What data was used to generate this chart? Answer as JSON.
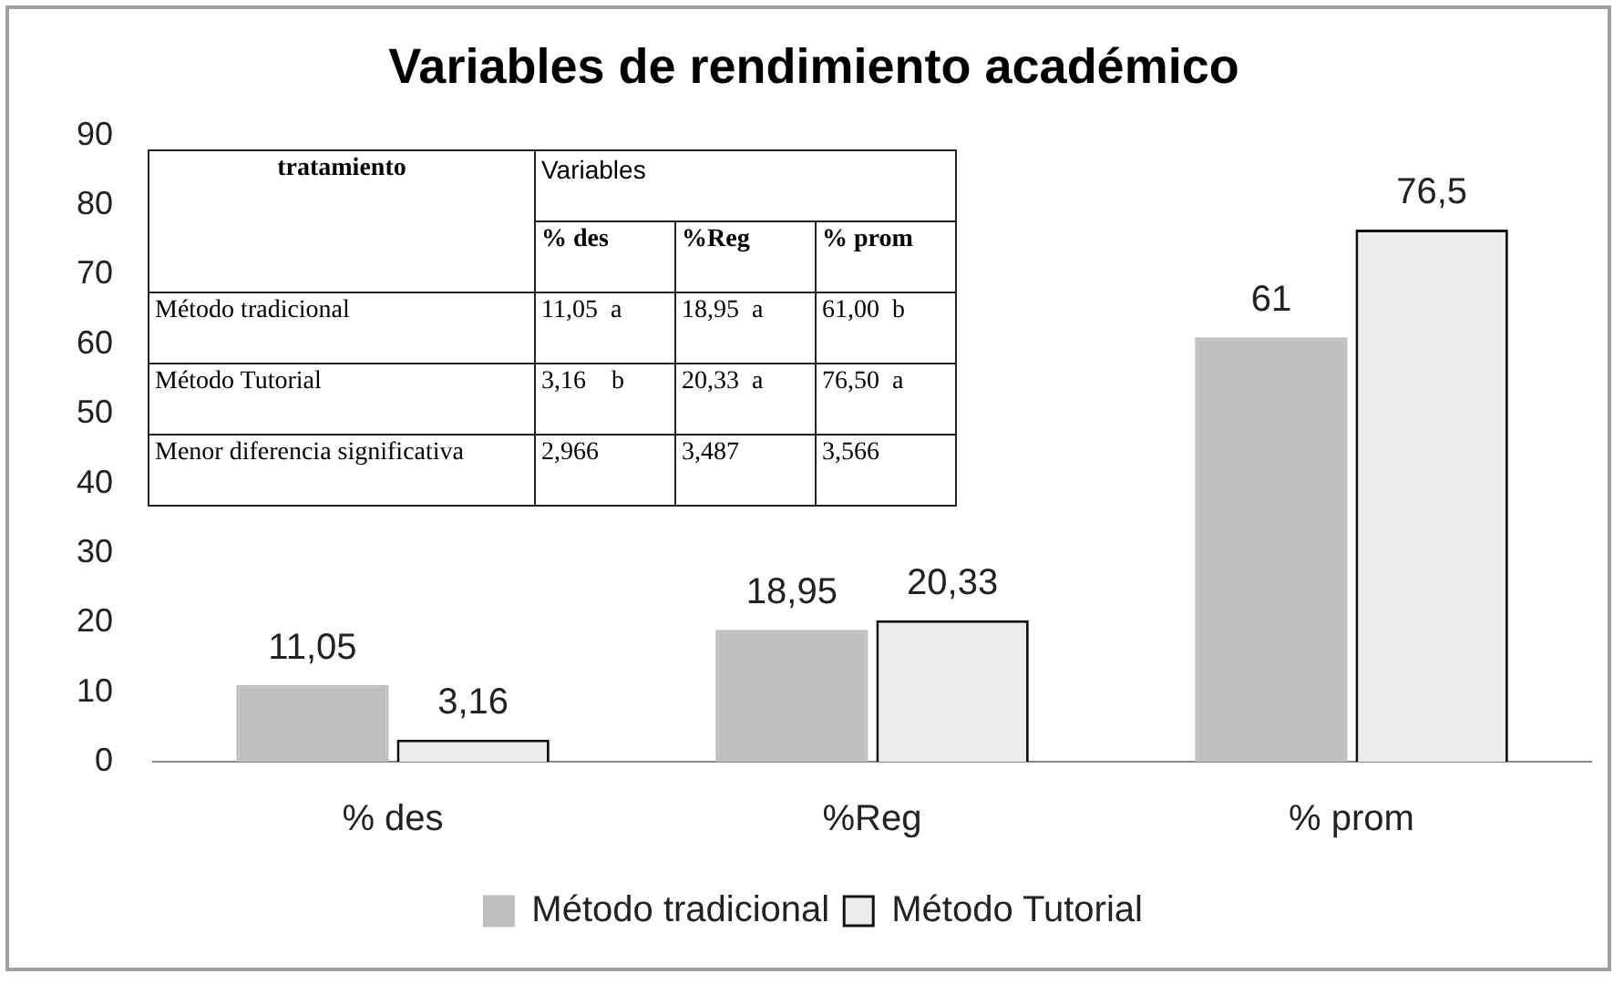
{
  "chart_data": {
    "type": "bar",
    "title": "Variables de rendimiento académico",
    "categories": [
      "% des",
      "%Reg",
      "% prom"
    ],
    "series": [
      {
        "name": "Método tradicional",
        "color": "#bfbfbf",
        "values": [
          11.05,
          18.95,
          61
        ],
        "value_labels": [
          "11,05",
          "18,95",
          "61"
        ]
      },
      {
        "name": "Método Tutorial",
        "color": "#ececec",
        "values": [
          3.16,
          20.33,
          76.5
        ],
        "value_labels": [
          "3,16",
          "20,33",
          "76,5"
        ]
      }
    ],
    "ylim": [
      0,
      90
    ],
    "yticks": [
      0,
      10,
      20,
      30,
      40,
      50,
      60,
      70,
      80,
      90
    ],
    "grid": false,
    "legend": "bottom",
    "annotations": [
      "tratamiento",
      "Variables",
      "% des",
      "%Reg",
      "% prom",
      "Método tradicional",
      "11,05  a",
      "18,95  a",
      "61,00  b",
      "Método Tutorial",
      "3,16    b",
      "20,33  a",
      "76,50  a",
      "Menor diferencia significativa",
      "2,966",
      "3,487",
      "3,566"
    ]
  }
}
